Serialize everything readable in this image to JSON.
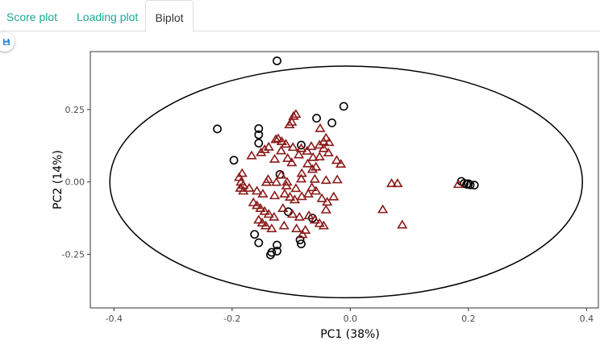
{
  "tabs": [
    {
      "label": "Score plot",
      "active": false
    },
    {
      "label": "Loading plot",
      "active": false
    },
    {
      "label": "Biplot",
      "active": true
    }
  ],
  "toolbar": {
    "save_icon": "floppy-disk-icon"
  },
  "colors": {
    "tab_link": "#18a896",
    "circle": "#000000",
    "triangle": "#8b1a1a",
    "ellipse": "#000000"
  },
  "chart_data": {
    "type": "scatter",
    "xlabel": "PC1 (38%)",
    "ylabel": "PC2 (14%)",
    "xlim": [
      -0.44,
      0.42
    ],
    "ylim": [
      -0.435,
      0.45
    ],
    "x_ticks": [
      -0.4,
      -0.2,
      0.0,
      0.2,
      0.4
    ],
    "x_tick_labels": [
      "-0.4",
      "-0.2",
      "0.0",
      "0.2",
      "0.4"
    ],
    "y_ticks": [
      -0.25,
      0.0,
      0.25
    ],
    "y_tick_labels": [
      "-0.25",
      "0.00",
      "0.25"
    ],
    "grid": false,
    "ellipse": {
      "center": [
        -0.007,
        0.0
      ],
      "semi_axis_x": 0.4,
      "semi_axis_y": 0.4
    },
    "series": [
      {
        "marker": "circle",
        "points": [
          [
            -0.124,
            0.418
          ],
          [
            -0.011,
            0.261
          ],
          [
            -0.225,
            0.183
          ],
          [
            -0.057,
            0.22
          ],
          [
            -0.031,
            0.204
          ],
          [
            -0.155,
            0.184
          ],
          [
            -0.155,
            0.163
          ],
          [
            -0.155,
            0.134
          ],
          [
            -0.083,
            0.127
          ],
          [
            -0.197,
            0.075
          ],
          [
            -0.119,
            0.026
          ],
          [
            -0.105,
            -0.103
          ],
          [
            -0.064,
            -0.125
          ],
          [
            -0.162,
            -0.181
          ],
          [
            -0.155,
            -0.21
          ],
          [
            -0.124,
            -0.218
          ],
          [
            -0.124,
            -0.239
          ],
          [
            -0.133,
            -0.243
          ],
          [
            -0.135,
            -0.252
          ],
          [
            -0.085,
            -0.2
          ],
          [
            -0.083,
            -0.214
          ],
          [
            0.188,
            0.002
          ],
          [
            0.193,
            -0.005
          ],
          [
            0.197,
            -0.008
          ],
          [
            0.2,
            -0.006
          ],
          [
            0.203,
            -0.01
          ],
          [
            0.21,
            -0.011
          ]
        ]
      },
      {
        "marker": "triangle",
        "points": [
          [
            -0.092,
            0.234
          ],
          [
            -0.096,
            0.227
          ],
          [
            -0.099,
            0.207
          ],
          [
            -0.103,
            0.198
          ],
          [
            -0.051,
            0.185
          ],
          [
            -0.126,
            0.147
          ],
          [
            -0.122,
            0.15
          ],
          [
            -0.116,
            0.14
          ],
          [
            -0.109,
            0.131
          ],
          [
            -0.097,
            0.12
          ],
          [
            -0.083,
            0.116
          ],
          [
            -0.066,
            0.123
          ],
          [
            -0.052,
            0.128
          ],
          [
            -0.045,
            0.139
          ],
          [
            -0.036,
            0.137
          ],
          [
            -0.041,
            0.152
          ],
          [
            -0.045,
            0.116
          ],
          [
            -0.037,
            0.101
          ],
          [
            -0.052,
            0.087
          ],
          [
            -0.063,
            0.085
          ],
          [
            -0.073,
            0.107
          ],
          [
            -0.087,
            0.094
          ],
          [
            -0.106,
            0.082
          ],
          [
            -0.117,
            0.108
          ],
          [
            -0.138,
            0.121
          ],
          [
            -0.145,
            0.112
          ],
          [
            -0.151,
            0.102
          ],
          [
            -0.167,
            0.091
          ],
          [
            -0.128,
            0.079
          ],
          [
            -0.099,
            0.067
          ],
          [
            -0.072,
            0.063
          ],
          [
            -0.058,
            0.052
          ],
          [
            -0.023,
            0.075
          ],
          [
            -0.016,
            0.062
          ],
          [
            -0.064,
            0.044
          ],
          [
            -0.082,
            0.03
          ],
          [
            -0.117,
            0.024
          ],
          [
            -0.139,
            0.009
          ],
          [
            -0.142,
            -0.001
          ],
          [
            -0.125,
            -0.001
          ],
          [
            -0.107,
            0.0
          ],
          [
            -0.083,
            0.011
          ],
          [
            -0.06,
            0.01
          ],
          [
            -0.041,
            0.006
          ],
          [
            -0.022,
            0.008
          ],
          [
            -0.183,
            0.03
          ],
          [
            -0.188,
            0.016
          ],
          [
            -0.185,
            0.0
          ],
          [
            -0.181,
            -0.011
          ],
          [
            -0.186,
            -0.021
          ],
          [
            -0.181,
            -0.031
          ],
          [
            -0.171,
            -0.021
          ],
          [
            -0.158,
            -0.031
          ],
          [
            -0.148,
            -0.041
          ],
          [
            -0.128,
            -0.047
          ],
          [
            -0.111,
            -0.041
          ],
          [
            -0.102,
            -0.052
          ],
          [
            -0.094,
            -0.061
          ],
          [
            -0.082,
            -0.05
          ],
          [
            -0.071,
            -0.041
          ],
          [
            -0.065,
            -0.019
          ],
          [
            -0.058,
            -0.031
          ],
          [
            -0.048,
            -0.057
          ],
          [
            -0.039,
            -0.069
          ],
          [
            -0.028,
            -0.051
          ],
          [
            -0.108,
            -0.013
          ],
          [
            -0.092,
            -0.022
          ],
          [
            -0.164,
            -0.071
          ],
          [
            -0.158,
            -0.081
          ],
          [
            -0.152,
            -0.091
          ],
          [
            -0.145,
            -0.101
          ],
          [
            -0.138,
            -0.111
          ],
          [
            -0.129,
            -0.121
          ],
          [
            -0.114,
            -0.091
          ],
          [
            -0.098,
            -0.111
          ],
          [
            -0.086,
            -0.121
          ],
          [
            -0.07,
            -0.116
          ],
          [
            -0.06,
            -0.131
          ],
          [
            -0.052,
            -0.143
          ],
          [
            -0.045,
            -0.151
          ],
          [
            -0.155,
            -0.131
          ],
          [
            -0.149,
            -0.141
          ],
          [
            -0.143,
            -0.151
          ],
          [
            -0.133,
            -0.161
          ],
          [
            -0.112,
            -0.151
          ],
          [
            -0.091,
            -0.161
          ],
          [
            -0.076,
            -0.166
          ],
          [
            -0.081,
            -0.181
          ],
          [
            -0.041,
            -0.096
          ],
          [
            0.07,
            -0.005
          ],
          [
            0.08,
            -0.005
          ],
          [
            0.055,
            -0.095
          ],
          [
            0.088,
            -0.148
          ],
          [
            0.183,
            -0.008
          ]
        ]
      }
    ]
  }
}
